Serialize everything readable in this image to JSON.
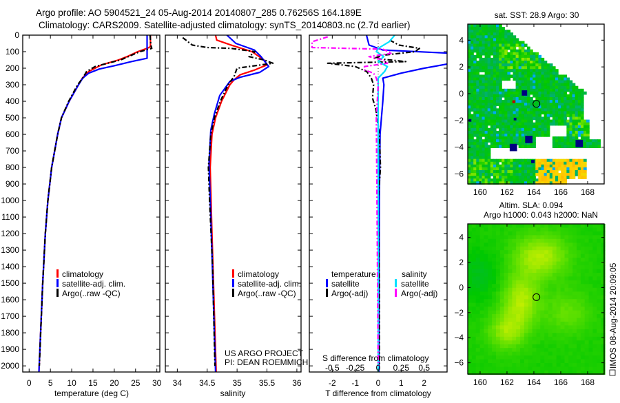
{
  "header": {
    "title_line1": "Argo profile: AO 5904521_24 05-Aug-2014 20140807_285 0.76256S 164.189E",
    "title_line2": "Climatology: CARS2009. Satellite-adjusted climatology: synTS_20140803.nc (2.7d earlier)"
  },
  "credit": {
    "line1": "US ARGO PROJECT",
    "line2": "PI: DEAN ROEMMICH"
  },
  "footer_stamp": "IMOS 08-Aug-2014 20:09:05",
  "colors": {
    "climatology": "#ff0000",
    "satellite": "#0000ff",
    "argo": "#000000",
    "salinity_satellite": "#00e0ff",
    "salinity_argo": "#ff00ff"
  },
  "chart_data": [
    {
      "type": "line",
      "id": "temperature",
      "xlabel": "temperature (deg C)",
      "ylabel": "",
      "xlim": [
        -1.5,
        30.7
      ],
      "ylim": [
        0,
        2037
      ],
      "y_inverted": true,
      "xticks": [
        0,
        5,
        10,
        15,
        20,
        25,
        30
      ],
      "yticks": [
        0,
        100,
        200,
        300,
        400,
        500,
        600,
        700,
        800,
        900,
        1000,
        1100,
        1200,
        1300,
        1400,
        1500,
        1600,
        1700,
        1800,
        1900,
        2000
      ],
      "legend": [
        "climatology",
        "satellite-adj. clim.",
        "Argo(..raw -QC)"
      ],
      "legend_position": "lower-middle",
      "series": [
        {
          "name": "climatology",
          "color": "#ff0000",
          "dash": false,
          "depth": [
            0,
            70,
            80,
            100,
            130,
            150,
            180,
            220,
            260,
            300,
            400,
            500,
            600,
            800,
            1000,
            1200,
            1500,
            2037
          ],
          "values": [
            28.5,
            28.5,
            27.7,
            25.5,
            23,
            21,
            17,
            14,
            12.5,
            11.6,
            9.4,
            7.6,
            6.7,
            5.3,
            4.4,
            3.8,
            3.2,
            2.3
          ]
        },
        {
          "name": "satellite-adj. clim.",
          "color": "#0000ff",
          "dash": false,
          "depth": [
            0,
            140,
            160,
            185,
            205,
            230,
            260,
            300,
            400,
            500,
            600,
            800,
            1000,
            1200,
            1500,
            2037
          ],
          "values": [
            27.7,
            27.7,
            24,
            20,
            16.5,
            14,
            12.6,
            11.6,
            9.4,
            7.6,
            6.7,
            5.3,
            4.4,
            3.8,
            3.2,
            2.3
          ]
        },
        {
          "name": "Argo(..raw -QC)",
          "color": "#000000",
          "dash": true,
          "depth": [
            0,
            60,
            80,
            100,
            150,
            190,
            220,
            260,
            300,
            400,
            500,
            600,
            800,
            1000,
            1200,
            1500,
            2000
          ],
          "values": [
            28.4,
            28.6,
            28.8,
            26,
            21.5,
            15.5,
            13.5,
            12.6,
            11.4,
            9.3,
            7.6,
            6.7,
            5.3,
            4.4,
            3.8,
            3.2,
            2.4
          ]
        }
      ]
    },
    {
      "type": "line",
      "id": "salinity",
      "xlabel": "salinity",
      "xlim": [
        33.8,
        36.07
      ],
      "ylim": [
        0,
        2037
      ],
      "y_inverted": true,
      "xticks": [
        34,
        34.5,
        35,
        35.5,
        36
      ],
      "legend": [
        "climatology",
        "satellite-adj. clim.",
        "Argo(..raw -QC)"
      ],
      "legend_position": "lower-middle",
      "series": [
        {
          "name": "climatology",
          "color": "#ff0000",
          "dash": false,
          "depth": [
            0,
            30,
            60,
            100,
            150,
            180,
            210,
            240,
            270,
            300,
            400,
            500,
            600,
            800,
            1200,
            2037
          ],
          "values": [
            34.64,
            34.66,
            34.9,
            35.25,
            35.45,
            35.5,
            35.3,
            35.05,
            34.95,
            34.88,
            34.74,
            34.64,
            34.58,
            34.55,
            34.58,
            34.65
          ]
        },
        {
          "name": "satellite-adj. clim.",
          "color": "#0000ff",
          "dash": false,
          "depth": [
            0,
            50,
            90,
            130,
            190,
            225,
            255,
            280,
            365,
            475,
            575,
            780,
            1200,
            2037
          ],
          "values": [
            34.83,
            34.98,
            35.29,
            35.4,
            35.53,
            35.38,
            35.05,
            34.88,
            34.71,
            34.62,
            34.56,
            34.53,
            34.57,
            34.64
          ]
        },
        {
          "name": "Argo(..raw -QC)",
          "color": "#000000",
          "dash": true,
          "depth": [
            15,
            60,
            75,
            80,
            100,
            130,
            150,
            170,
            200,
            250,
            300,
            400,
            500,
            600,
            800,
            1000,
            1400,
            2000
          ],
          "values": [
            34.09,
            34.25,
            34.5,
            34.9,
            35.3,
            35.2,
            35.45,
            35.6,
            35.0,
            34.95,
            34.85,
            34.72,
            34.62,
            34.56,
            34.52,
            34.54,
            34.59,
            34.63
          ]
        }
      ]
    },
    {
      "type": "line",
      "id": "difference",
      "xlabel": "T difference from climatology",
      "xlabel_secondary": "S difference from climatology",
      "xlim": [
        -3,
        3
      ],
      "xlim_secondary": [
        -0.75,
        0.75
      ],
      "ylim": [
        0,
        2037
      ],
      "y_inverted": true,
      "xticks": [
        -2,
        -1,
        0,
        1,
        2
      ],
      "xticks_secondary": [
        "-0.5",
        "-0.25",
        "0",
        "0.25",
        "0.5"
      ],
      "legend_headers": [
        "temperature",
        "salinity"
      ],
      "legend": [
        "satellite",
        "Argo(-adj)",
        "satellite",
        "Argo(-adj)"
      ],
      "legend_position": "lower-middle",
      "series": [
        {
          "name": "temperature satellite",
          "axis": "T",
          "color": "#0000ff",
          "dash": false,
          "depth": [
            0,
            60,
            90,
            110,
            170,
            200,
            230,
            260,
            300,
            400,
            600,
            1000,
            2037
          ],
          "values": [
            -0.51,
            -0.4,
            0.2,
            3.2,
            3.2,
            2.0,
            1.0,
            0.2,
            0.25,
            0.2,
            0.08,
            0.05,
            0.03
          ]
        },
        {
          "name": "temperature Argo(-adj)",
          "axis": "T",
          "color": "#000000",
          "dash": true,
          "depth": [
            30,
            60,
            80,
            100,
            120,
            140,
            160,
            170,
            190,
            220,
            260,
            300,
            380,
            450,
            600,
            800,
            1000,
            1500,
            2000
          ],
          "values": [
            0.5,
            0.9,
            1.8,
            1.6,
            0.3,
            -0.2,
            1.2,
            -2.2,
            -1.0,
            -0.5,
            -0.3,
            -0.2,
            -0.25,
            -0.1,
            0.05,
            0.1,
            0.0,
            0.05,
            0.05
          ]
        },
        {
          "name": "salinity satellite",
          "axis": "S",
          "color": "#00e0ff",
          "dash": false,
          "depth": [
            0,
            40,
            80,
            100,
            130,
            160,
            190,
            220,
            260,
            300,
            2037
          ],
          "values": [
            0.18,
            0.12,
            0.0,
            -0.02,
            0.06,
            0.0,
            0.1,
            0.07,
            0.0,
            0.0,
            0.0
          ]
        },
        {
          "name": "salinity Argo(-adj)",
          "axis": "S",
          "color": "#ff00ff",
          "dash": true,
          "depth": [
            10,
            40,
            75,
            85,
            110,
            130,
            150,
            170,
            190,
            210,
            230,
            260,
            300,
            500,
            2000
          ],
          "values": [
            -0.55,
            -0.72,
            -0.72,
            0.05,
            0.15,
            -0.1,
            0.05,
            0.1,
            -0.15,
            -0.15,
            -0.05,
            -0.02,
            0.0,
            -0.02,
            0.0
          ]
        }
      ]
    },
    {
      "type": "heatmap",
      "id": "sst-map",
      "title": "sat. SST: 28.9 Argo: 30",
      "xlim": [
        159.08,
        169.23
      ],
      "ylim": [
        -6.75,
        5.2
      ],
      "xticks": [
        160,
        162,
        164,
        166,
        168
      ],
      "yticks": [
        4,
        2,
        0,
        -2,
        -4,
        -6
      ],
      "marker": {
        "lon": 164.189,
        "lat": -0.76256
      }
    },
    {
      "type": "heatmap",
      "id": "sla-map",
      "title": "Altim. SLA: 0.094",
      "subtitle": "Argo h1000: 0.043 h2000: NaN",
      "xlim": [
        159.08,
        169.23
      ],
      "ylim": [
        -6.9,
        5.08
      ],
      "xticks": [
        160,
        162,
        164,
        166,
        168
      ],
      "yticks": [
        4,
        2,
        0,
        -2,
        -4,
        -6
      ],
      "marker": {
        "lon": 164.189,
        "lat": -0.76256
      }
    }
  ]
}
